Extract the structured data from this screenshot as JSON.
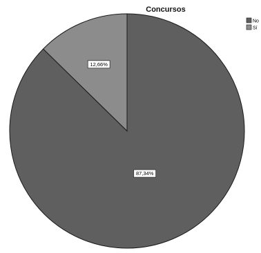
{
  "chart_data": {
    "type": "pie",
    "title": "Concursos",
    "labels": [
      "No",
      "Sí"
    ],
    "values": [
      87.34,
      12.66
    ],
    "value_labels": [
      "87,34%",
      "12,66%"
    ],
    "colors": [
      "#5f5f5f",
      "#8c8c8c"
    ],
    "legend_position": "top-right",
    "start_angle": "top",
    "direction": "clockwise"
  }
}
